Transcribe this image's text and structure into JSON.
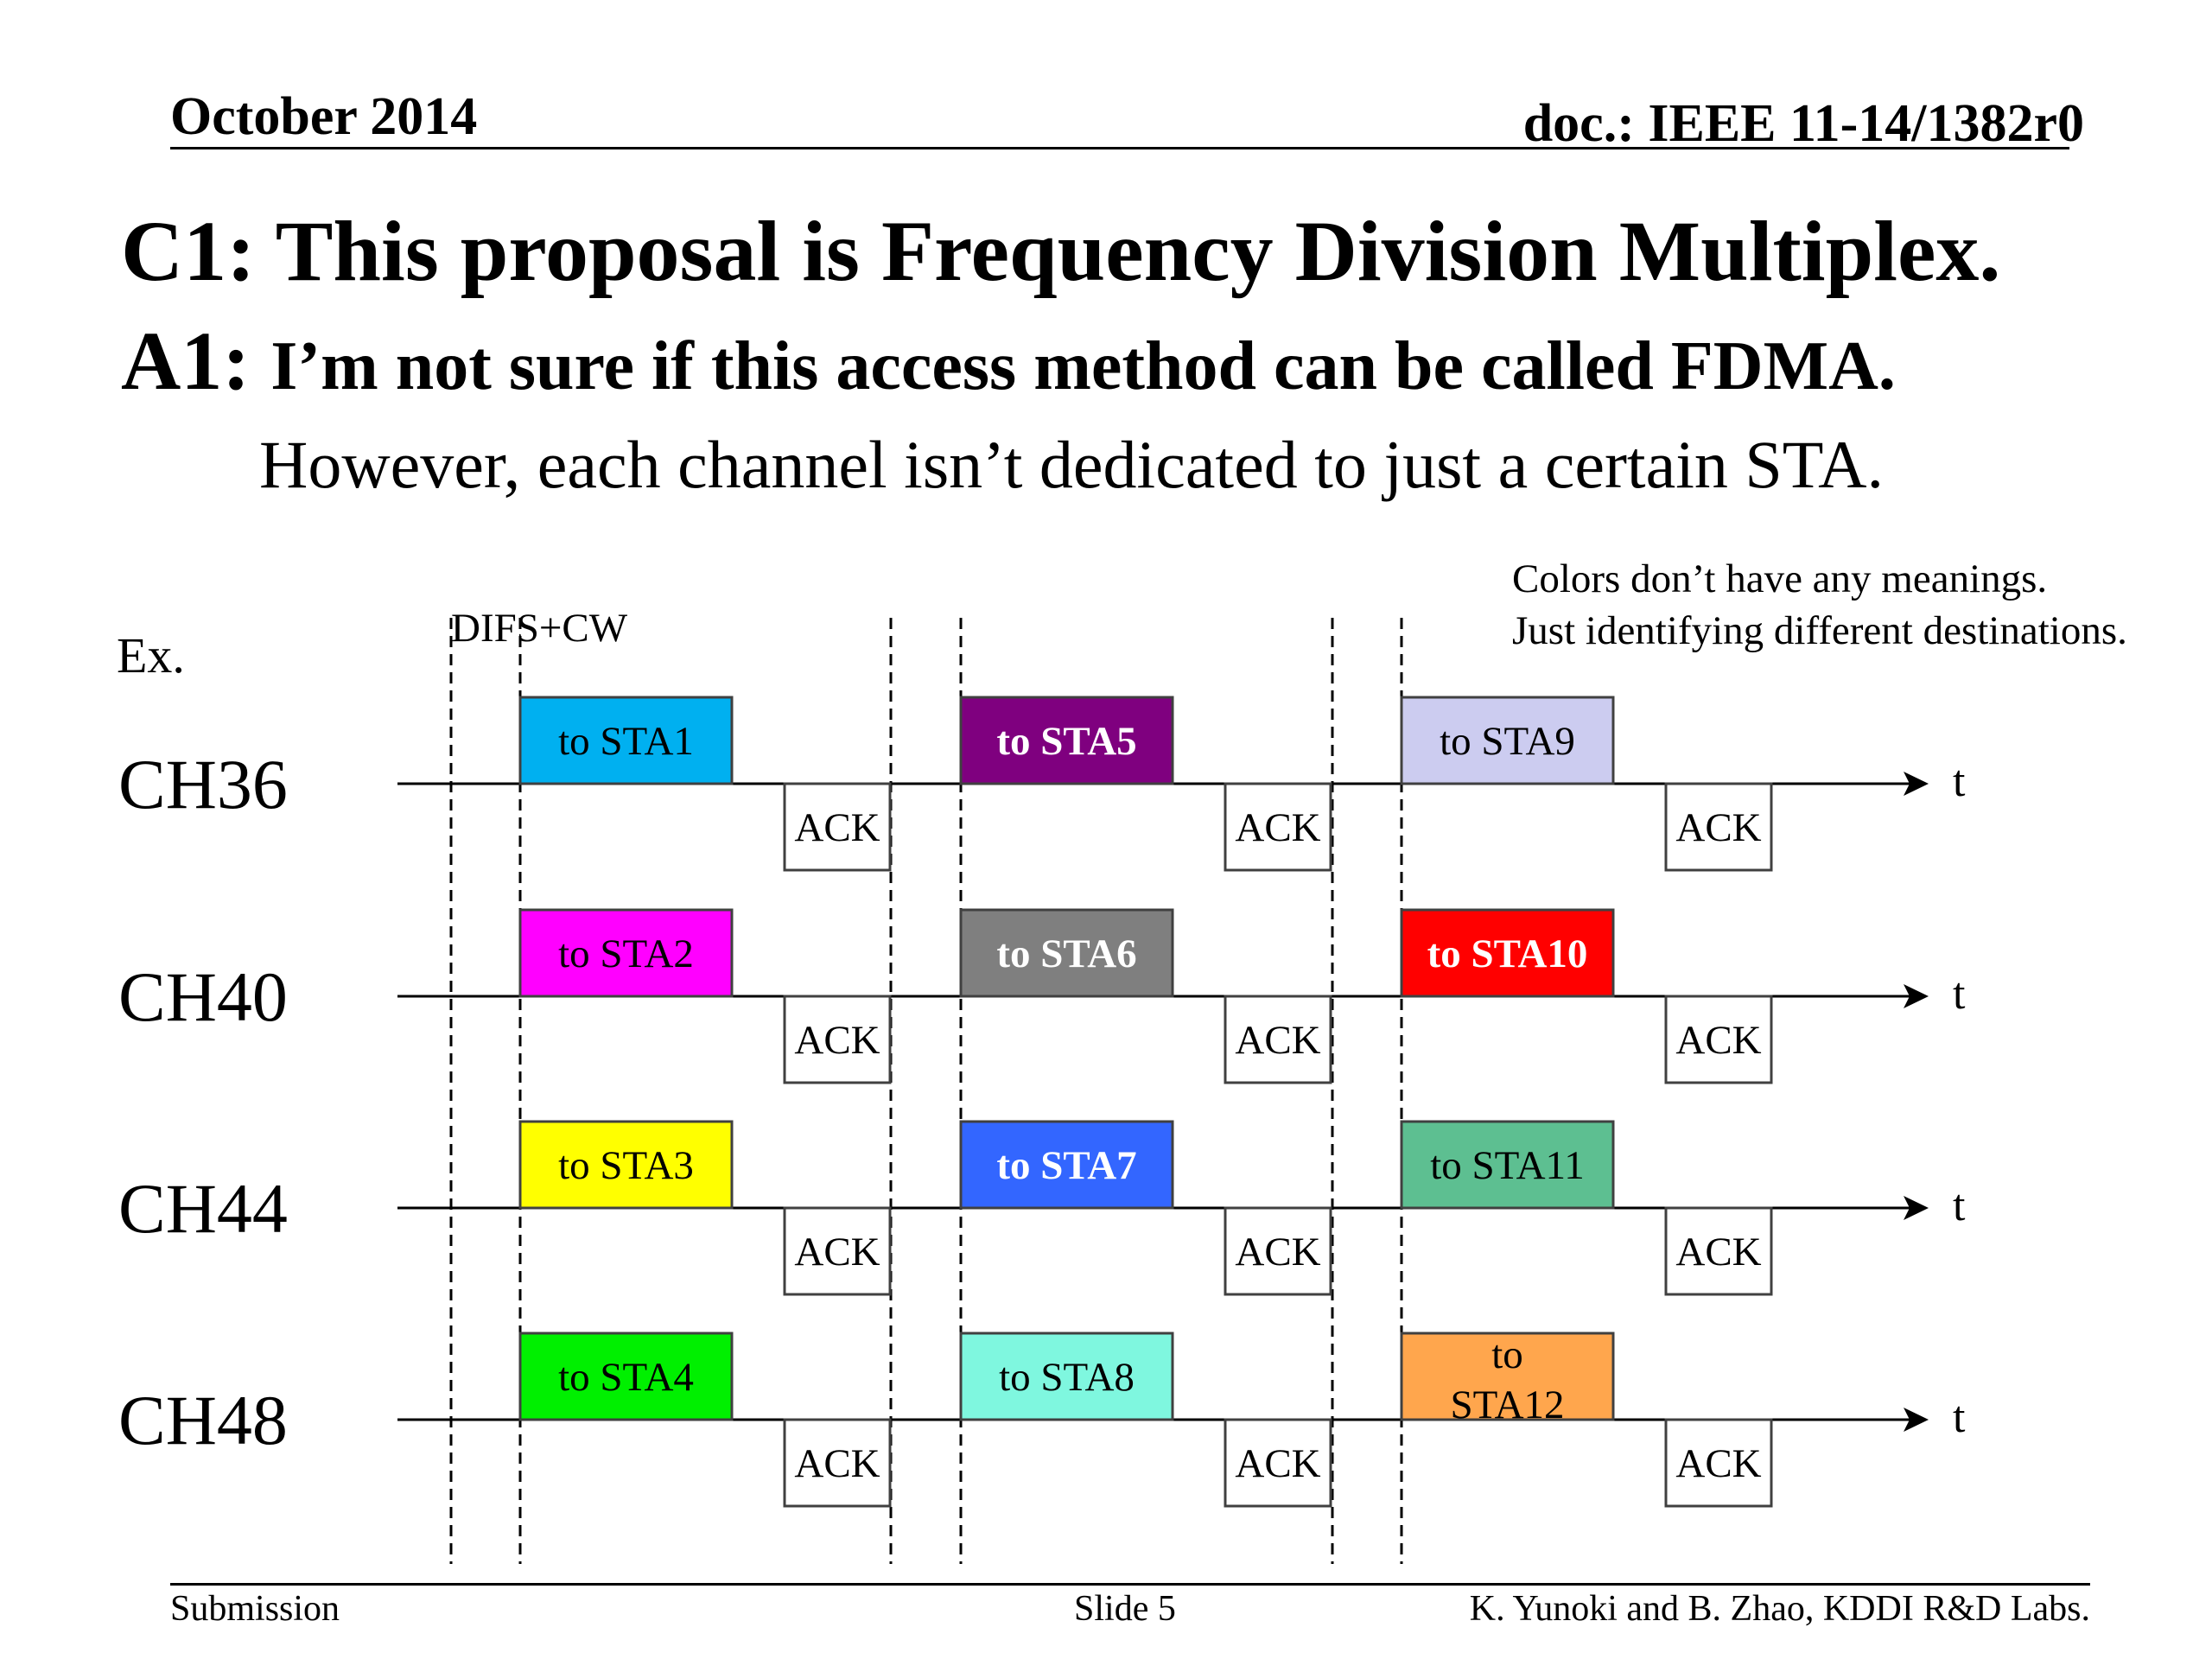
{
  "header": {
    "date": "October 2014",
    "doc": "doc.: IEEE 11-14/1382r0"
  },
  "title": {
    "question_prefix": "C1:",
    "question": "This proposal is Frequency Division Multiplex.",
    "answer_prefix": "A1:",
    "answer": "I’m not sure if this access method can be called FDMA.",
    "note": "However, each channel isn’t dedicated to just a certain STA."
  },
  "diagram": {
    "example_label": "Ex.",
    "difs_label": "DIFS+CW",
    "colors_note": [
      "Colors don’t have any meanings.",
      "Just identifying different destinations."
    ],
    "time_label": "t",
    "ack_label": "ACK",
    "channels": [
      {
        "name": "CH36",
        "frames": [
          {
            "label": "to STA1",
            "color": "#00b0f0",
            "text_color": "#000000",
            "bold": false
          },
          {
            "label": "to STA5",
            "color": "#7f007f",
            "text_color": "#ffffff",
            "bold": true
          },
          {
            "label": "to STA9",
            "color": "#ccccf0",
            "text_color": "#000000",
            "bold": false
          }
        ]
      },
      {
        "name": "CH40",
        "frames": [
          {
            "label": "to STA2",
            "color": "#ff00ff",
            "text_color": "#000000",
            "bold": false
          },
          {
            "label": "to STA6",
            "color": "#7f7f7f",
            "text_color": "#ffffff",
            "bold": true
          },
          {
            "label": "to STA10",
            "color": "#ff0000",
            "text_color": "#ffffff",
            "bold": true
          }
        ]
      },
      {
        "name": "CH44",
        "frames": [
          {
            "label": "to STA3",
            "color": "#ffff00",
            "text_color": "#000000",
            "bold": false
          },
          {
            "label": "to STA7",
            "color": "#3366ff",
            "text_color": "#ffffff",
            "bold": true
          },
          {
            "label": "to STA11",
            "color": "#5dbf91",
            "text_color": "#000000",
            "bold": false
          }
        ]
      },
      {
        "name": "CH48",
        "frames": [
          {
            "label": "to STA4",
            "color": "#00f000",
            "text_color": "#000000",
            "bold": false
          },
          {
            "label": "to STA8",
            "color": "#7ff7df",
            "text_color": "#000000",
            "bold": false
          },
          {
            "label": "to STA12",
            "color": "#ffa64d",
            "text_color": "#000000",
            "bold": false,
            "lines": [
              "to",
              "STA12"
            ]
          }
        ]
      }
    ]
  },
  "footer": {
    "left": "Submission",
    "center": "Slide 5",
    "right": "K. Yunoki and B. Zhao, KDDI R&D Labs."
  }
}
